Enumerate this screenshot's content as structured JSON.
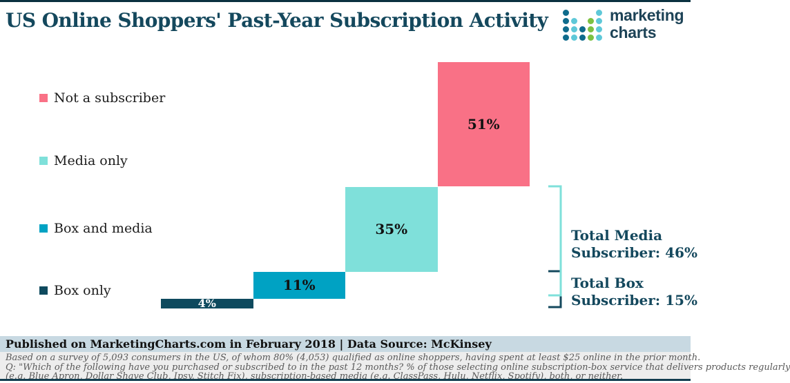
{
  "header": {
    "title": "US Online Shoppers' Past-Year Subscription Activity",
    "logo": {
      "line1": "marketing",
      "line2": "charts",
      "dot_colors": {
        "d": "#0f6b8c",
        "t": "#5ec8d8",
        "g": "#7cc142"
      },
      "dots": [
        [
          "d",
          null,
          null,
          null,
          "t"
        ],
        [
          "d",
          "t",
          null,
          "g",
          "t"
        ],
        [
          "d",
          "t",
          "d",
          "g",
          "t"
        ],
        [
          "d",
          "t",
          "d",
          "g",
          "t"
        ]
      ]
    }
  },
  "legend": {
    "items": [
      {
        "label": "Not a subscriber",
        "color": "#f97186"
      },
      {
        "label": "Media only",
        "color": "#7fe0da"
      },
      {
        "label": "Box and media",
        "color": "#00a2c3"
      },
      {
        "label": "Box only",
        "color": "#0e4a5e"
      }
    ]
  },
  "chart_data": {
    "type": "bar",
    "subtype": "waterfall",
    "title": "US Online Shoppers' Past-Year Subscription Activity",
    "unit": "%",
    "categories": [
      "Box only",
      "Box and media",
      "Media only",
      "Not a subscriber"
    ],
    "values": [
      4,
      11,
      35,
      51
    ],
    "series": [
      {
        "name": "Box only",
        "value": 4,
        "label": "4%",
        "color": "#0e4a5e",
        "label_color": "#ffffff"
      },
      {
        "name": "Box and media",
        "value": 11,
        "label": "11%",
        "color": "#00a2c3",
        "label_color": "#121212"
      },
      {
        "name": "Media only",
        "value": 35,
        "label": "35%",
        "color": "#7fe0da",
        "label_color": "#121212"
      },
      {
        "name": "Not a subscriber",
        "value": 51,
        "label": "51%",
        "color": "#f97186",
        "label_color": "#121212"
      }
    ],
    "annotations": [
      {
        "line1": "Total Media",
        "line2": "Subscriber: 46%",
        "value": 46,
        "spans": [
          "Media only",
          "Box and media"
        ],
        "bracket_color": "#7fe0da"
      },
      {
        "line1": "Total Box",
        "line2": "Subscriber: 15%",
        "value": 15,
        "spans": [
          "Box and media",
          "Box only"
        ],
        "bracket_color": "#14485d"
      }
    ],
    "legend_position": "left",
    "axes_visible": false
  },
  "footer": {
    "published": "Published on MarketingCharts.com in February 2018 | Data Source: McKinsey",
    "notes": [
      "Based on a survey of 5,093 consumers in the US, of whom 80% (4,053) qualified as online shoppers, having spent at least $25 online in the prior month.",
      "Q: \"Which of the following have you purchased or subscribed to in the past 12 months? % of those selecting online subscription-box service that delivers products regularly",
      "(e.g. Blue Apron, Dollar Shave Club, Ipsy, Stitch Fix), subscription-based media (e.g. ClassPass, Hulu, Netflix, Spotify), both, or neither."
    ]
  }
}
